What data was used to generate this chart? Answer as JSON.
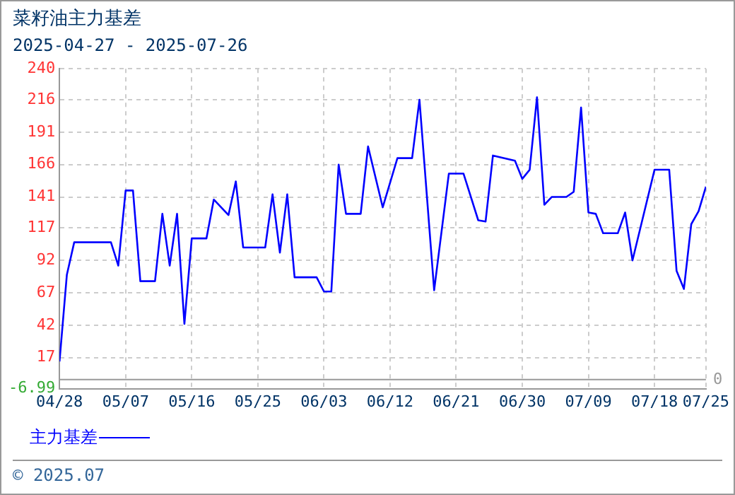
{
  "chart_data": {
    "type": "line",
    "title": "菜籽油主力基差",
    "subtitle": "2025-04-27 - 2025-07-26",
    "x": [
      "2025-04-28",
      "2025-04-29",
      "2025-04-30",
      "2025-05-05",
      "2025-05-06",
      "2025-05-07",
      "2025-05-08",
      "2025-05-09",
      "2025-05-11",
      "2025-05-12",
      "2025-05-13",
      "2025-05-14",
      "2025-05-15",
      "2025-05-16",
      "2025-05-18",
      "2025-05-19",
      "2025-05-21",
      "2025-05-22",
      "2025-05-23",
      "2025-05-26",
      "2025-05-27",
      "2025-05-28",
      "2025-05-29",
      "2025-05-30",
      "2025-06-02",
      "2025-06-03",
      "2025-06-04",
      "2025-06-05",
      "2025-06-06",
      "2025-06-08",
      "2025-06-09",
      "2025-06-11",
      "2025-06-13",
      "2025-06-15",
      "2025-06-16",
      "2025-06-18",
      "2025-06-20",
      "2025-06-22",
      "2025-06-24",
      "2025-06-25",
      "2025-06-26",
      "2025-06-29",
      "2025-06-30",
      "2025-07-01",
      "2025-07-02",
      "2025-07-03",
      "2025-07-04",
      "2025-07-06",
      "2025-07-07",
      "2025-07-08",
      "2025-07-09",
      "2025-07-10",
      "2025-07-11",
      "2025-07-13",
      "2025-07-14",
      "2025-07-15",
      "2025-07-18",
      "2025-07-20",
      "2025-07-21",
      "2025-07-22",
      "2025-07-23",
      "2025-07-24",
      "2025-07-25"
    ],
    "series": [
      {
        "name": "主力基差",
        "color": "#0000ff",
        "values": [
          14,
          81,
          106,
          106,
          88,
          146,
          146,
          76,
          76,
          128,
          88,
          128,
          43,
          109,
          109,
          139,
          127,
          153,
          102,
          102,
          143,
          98,
          143,
          79,
          79,
          68,
          68,
          166,
          128,
          128,
          180,
          133,
          171,
          171,
          216,
          69,
          159,
          159,
          123,
          122,
          173,
          169,
          155,
          162,
          218,
          135,
          141,
          141,
          145,
          210,
          129,
          128,
          113,
          113,
          129,
          92,
          162,
          162,
          84,
          70,
          120,
          130,
          149
        ]
      }
    ],
    "xlim": [
      "2025-04-28",
      "2025-07-25"
    ],
    "xticks": [
      {
        "value": "2025-04-28",
        "label": "04/28"
      },
      {
        "value": "2025-05-07",
        "label": "05/07"
      },
      {
        "value": "2025-05-16",
        "label": "05/16"
      },
      {
        "value": "2025-05-25",
        "label": "05/25"
      },
      {
        "value": "2025-06-03",
        "label": "06/03"
      },
      {
        "value": "2025-06-12",
        "label": "06/12"
      },
      {
        "value": "2025-06-21",
        "label": "06/21"
      },
      {
        "value": "2025-06-30",
        "label": "06/30"
      },
      {
        "value": "2025-07-09",
        "label": "07/09"
      },
      {
        "value": "2025-07-18",
        "label": "07/18"
      },
      {
        "value": "2025-07-25",
        "label": "07/25"
      }
    ],
    "ylim": [
      -6.99,
      240
    ],
    "yticks": [
      -6.99,
      17,
      42,
      67,
      92,
      117,
      141,
      166,
      191,
      216,
      240
    ],
    "ref_lines": [
      {
        "axis": "y",
        "value": 0,
        "label": "0",
        "color": "#999999"
      }
    ],
    "grid": true,
    "legend": "bottom left",
    "marker": "none",
    "line_style": "solid",
    "annotations": [
      "© 2025.07"
    ]
  }
}
